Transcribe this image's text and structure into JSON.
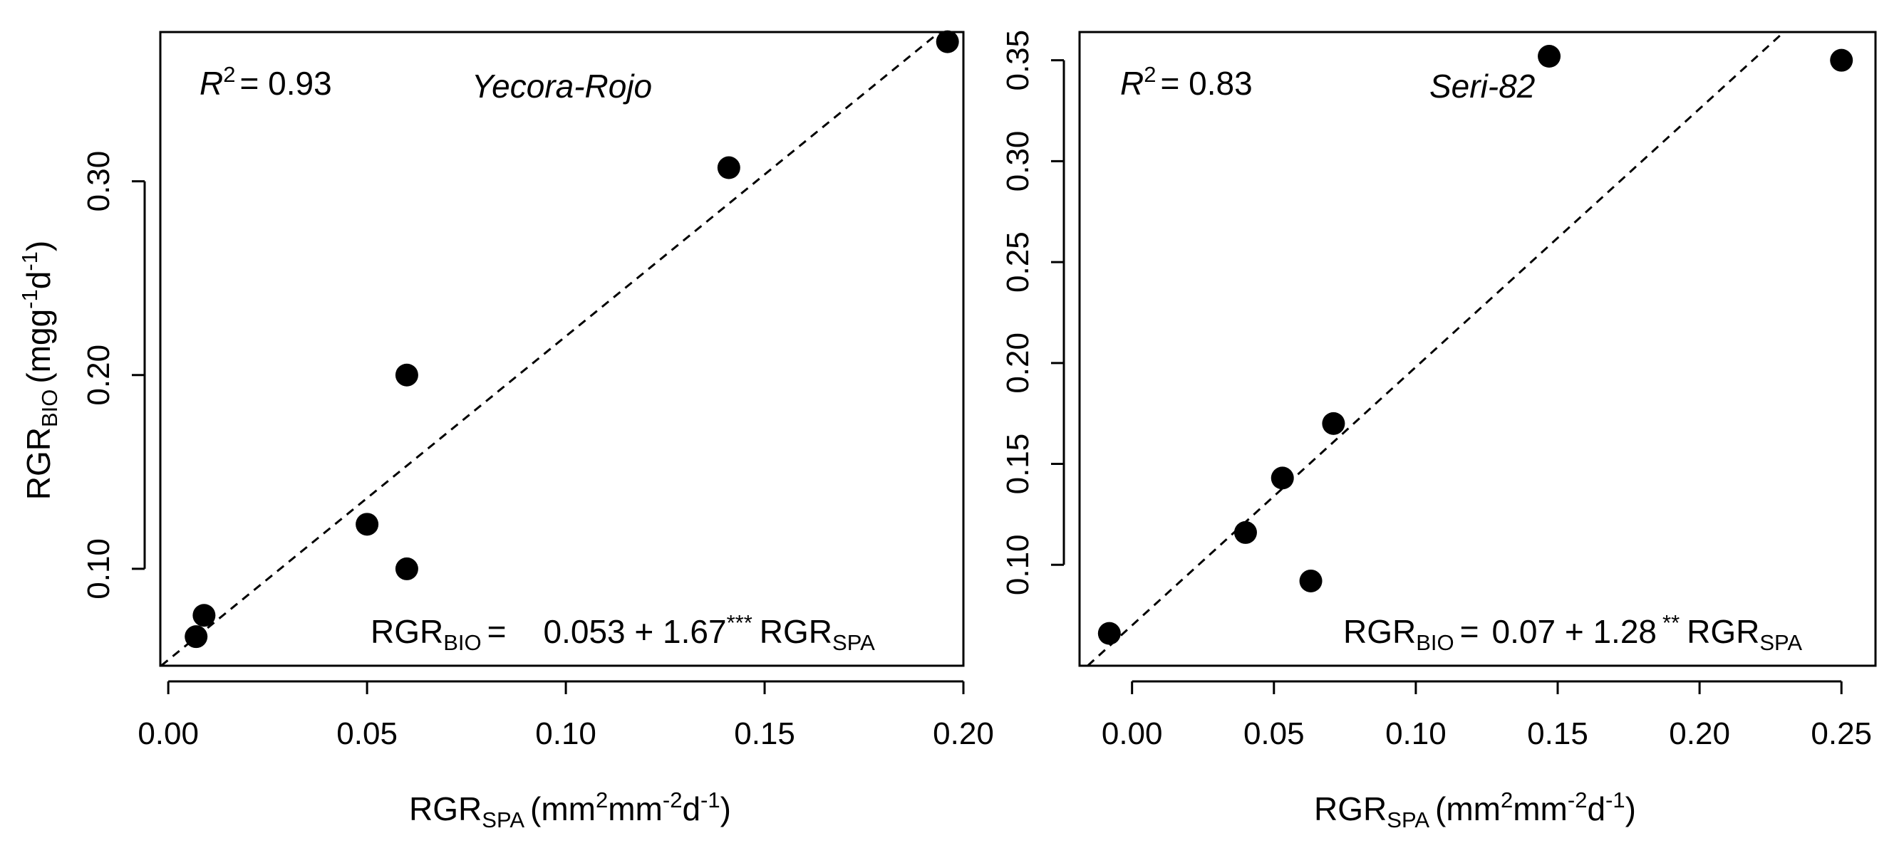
{
  "chart_data": [
    {
      "type": "scatter",
      "cultivar": "Yecora-Rojo",
      "r2_label": "R",
      "r2_sup": "2",
      "r2_value": "= 0.93",
      "equation": {
        "lhs_main": "RGR",
        "lhs_sub": "BIO",
        "eq_sign": "=",
        "rhs_main": "0.053 + 1.67",
        "rhs_sig": "***",
        "rhs_var": "RGR",
        "rhs_var_sub": "SPA"
      },
      "x_ticks": [
        "0.00",
        "0.05",
        "0.10",
        "0.15",
        "0.20"
      ],
      "y_ticks": [
        "0.10",
        "0.20",
        "0.30"
      ],
      "xlim": [
        -0.002,
        0.2
      ],
      "ylim": [
        0.05,
        0.377
      ],
      "fit": {
        "intercept": 0.053,
        "slope": 1.67
      },
      "points": [
        {
          "x": 0.007,
          "y": 0.065
        },
        {
          "x": 0.009,
          "y": 0.076
        },
        {
          "x": 0.05,
          "y": 0.123
        },
        {
          "x": 0.06,
          "y": 0.1
        },
        {
          "x": 0.06,
          "y": 0.2
        },
        {
          "x": 0.141,
          "y": 0.307
        },
        {
          "x": 0.196,
          "y": 0.372
        }
      ],
      "xlabel": {
        "main": "RGR",
        "sub": "SPA",
        "units_a": "(mm",
        "units_sup1": "2",
        "units_b": "mm",
        "units_sup2": "-2",
        "units_c": "d",
        "units_sup3": "-1",
        "units_d": ")"
      },
      "ylabel": {
        "main": "RGR",
        "sub": "BIO",
        "units_a": "(mgg",
        "units_sup1": "-1",
        "units_b": "d",
        "units_sup2": "-1",
        "units_c": ")"
      }
    },
    {
      "type": "scatter",
      "cultivar": "Seri-82",
      "r2_label": "R",
      "r2_sup": "2",
      "r2_value": "= 0.83",
      "equation": {
        "lhs_main": "RGR",
        "lhs_sub": "BIO",
        "eq_sign": "=",
        "rhs_main": "0.07 + 1.28",
        "rhs_sig": "**",
        "rhs_var": "RGR",
        "rhs_var_sub": "SPA"
      },
      "x_ticks": [
        "0.00",
        "0.05",
        "0.10",
        "0.15",
        "0.20",
        "0.25"
      ],
      "y_ticks": [
        "0.10",
        "0.15",
        "0.20",
        "0.25",
        "0.30",
        "0.35"
      ],
      "xlim": [
        -0.0185,
        0.262
      ],
      "ylim": [
        0.05,
        0.364
      ],
      "fit": {
        "intercept": 0.07,
        "slope": 1.28
      },
      "points": [
        {
          "x": -0.008,
          "y": 0.066
        },
        {
          "x": 0.04,
          "y": 0.116
        },
        {
          "x": 0.053,
          "y": 0.143
        },
        {
          "x": 0.063,
          "y": 0.092
        },
        {
          "x": 0.071,
          "y": 0.17
        },
        {
          "x": 0.147,
          "y": 0.352
        },
        {
          "x": 0.25,
          "y": 0.35
        }
      ],
      "xlabel": {
        "main": "RGR",
        "sub": "SPA",
        "units_a": "(mm",
        "units_sup1": "2",
        "units_b": "mm",
        "units_sup2": "-2",
        "units_c": "d",
        "units_sup3": "-1",
        "units_d": ")"
      }
    }
  ],
  "style": {
    "marker_color": "#000000",
    "line_color": "#000000",
    "background": "#ffffff"
  }
}
